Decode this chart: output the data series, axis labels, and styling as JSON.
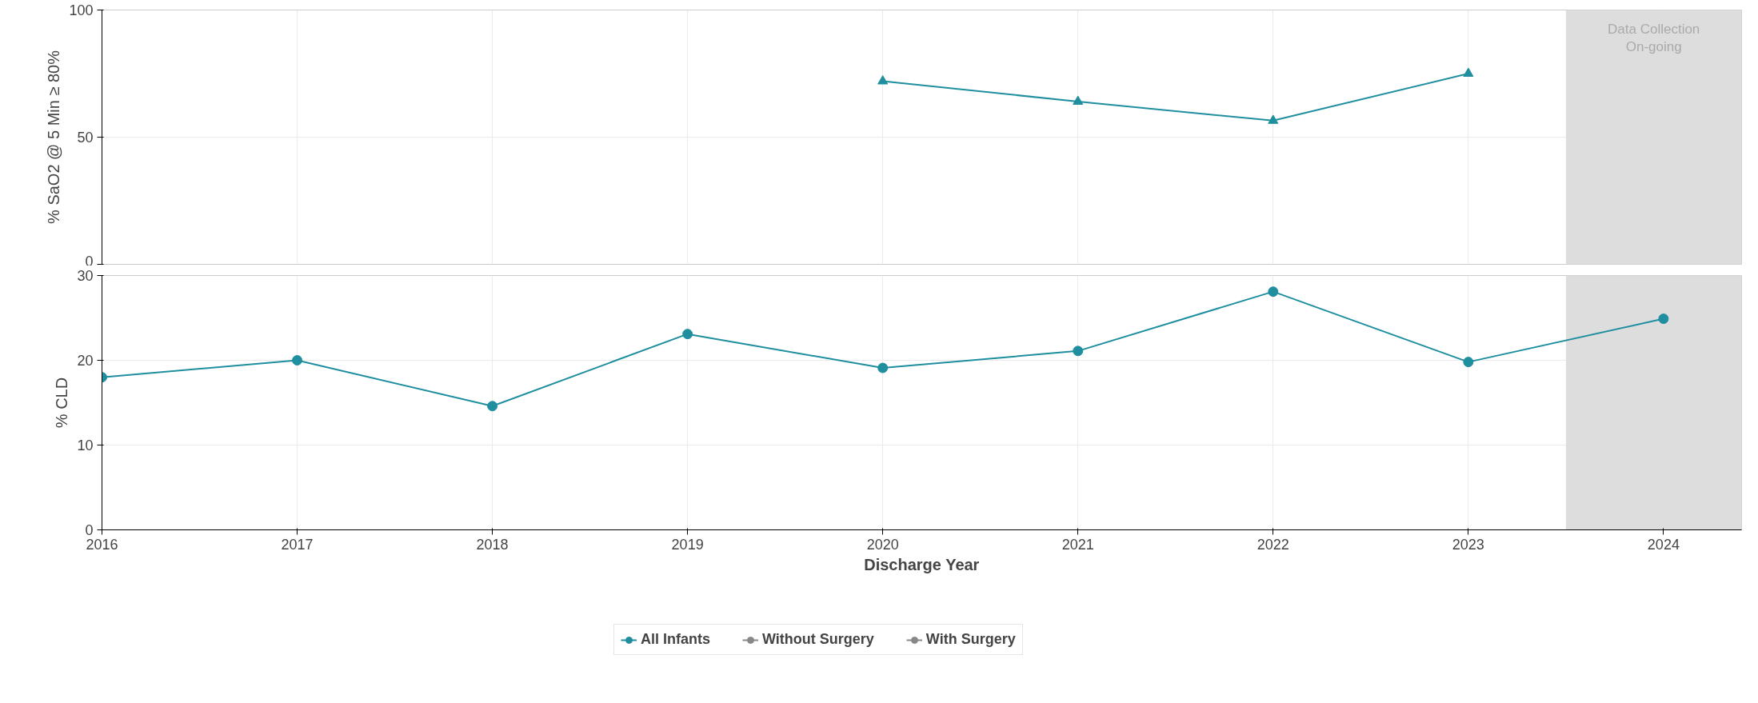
{
  "chart_data": [
    {
      "type": "line",
      "ylabel": "% SaO2 @ 5 Min ≥ 80%",
      "xlim": [
        2016,
        2024.4
      ],
      "ylim": [
        0,
        100
      ],
      "yticks": [
        0,
        50,
        100
      ],
      "xticks": [
        2016,
        2017,
        2018,
        2019,
        2020,
        2021,
        2022,
        2023,
        2024
      ],
      "tick_labels": "y",
      "grid": true,
      "marker": "triangle",
      "series": [
        {
          "color": "#1f8fa0",
          "x": [
            2020,
            2021,
            2022,
            2023
          ],
          "values": [
            72,
            64,
            56.5,
            75
          ]
        }
      ],
      "bands": [
        {
          "axis": "x",
          "from": 2023.5,
          "to": 2024.4,
          "label": "Data Collection\nOn-going",
          "color": "#dddddd"
        }
      ]
    },
    {
      "type": "line",
      "xlabel": "Discharge Year",
      "ylabel": "% CLD",
      "x": [
        2016,
        2017,
        2018,
        2019,
        2020,
        2021,
        2022,
        2023,
        2024
      ],
      "xlim": [
        2016,
        2024.4
      ],
      "ylim": [
        0,
        30
      ],
      "yticks": [
        0,
        10,
        20,
        30
      ],
      "xticks": [
        2016,
        2017,
        2018,
        2019,
        2020,
        2021,
        2022,
        2023,
        2024
      ],
      "grid": true,
      "marker": "circle",
      "legend": "bottom",
      "series": [
        {
          "name": "All Infants",
          "color": "#1f8fa0",
          "values": [
            18,
            20,
            14.6,
            23.1,
            19.1,
            21.1,
            28.1,
            19.8,
            24.9
          ]
        },
        {
          "name": "Without Surgery",
          "color": "#888888",
          "values": [
            null,
            null,
            null,
            null,
            null,
            null,
            null,
            null,
            null
          ]
        },
        {
          "name": "With Surgery",
          "color": "#888888",
          "values": [
            null,
            null,
            null,
            null,
            null,
            null,
            null,
            null,
            null
          ]
        }
      ],
      "bands": [
        {
          "axis": "x",
          "from": 2023.5,
          "to": 2024.4,
          "color": "#dddddd"
        }
      ]
    }
  ]
}
